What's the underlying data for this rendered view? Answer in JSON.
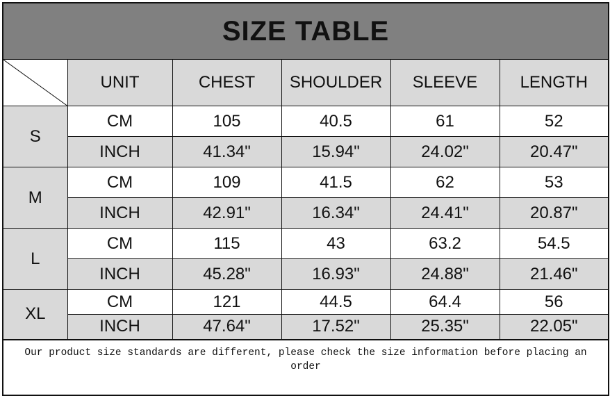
{
  "title": "SIZE TABLE",
  "headers": [
    "UNIT",
    "CHEST",
    "SHOULDER",
    "SLEEVE",
    "LENGTH"
  ],
  "rows": [
    {
      "size": "S",
      "cm": {
        "unit": "CM",
        "values": [
          "105",
          "40.5",
          "61",
          "52"
        ]
      },
      "inch": {
        "unit": "INCH",
        "values": [
          "41.34\"",
          "15.94\"",
          "24.02\"",
          "20.47\""
        ]
      }
    },
    {
      "size": "M",
      "cm": {
        "unit": "CM",
        "values": [
          "109",
          "41.5",
          "62",
          "53"
        ]
      },
      "inch": {
        "unit": "INCH",
        "values": [
          "42.91\"",
          "16.34\"",
          "24.41\"",
          "20.87\""
        ]
      }
    },
    {
      "size": "L",
      "cm": {
        "unit": "CM",
        "values": [
          "115",
          "43",
          "63.2",
          "54.5"
        ]
      },
      "inch": {
        "unit": "INCH",
        "values": [
          "45.28\"",
          "16.93\"",
          "24.88\"",
          "21.46\""
        ]
      }
    },
    {
      "size": "XL",
      "cm": {
        "unit": "CM",
        "values": [
          "121",
          "44.5",
          "64.4",
          "56"
        ]
      },
      "inch": {
        "unit": "INCH",
        "values": [
          "47.64\"",
          "17.52\"",
          "25.35\"",
          "22.05\""
        ]
      }
    }
  ],
  "note": "Our product size standards are different, please check the size information before placing an order"
}
